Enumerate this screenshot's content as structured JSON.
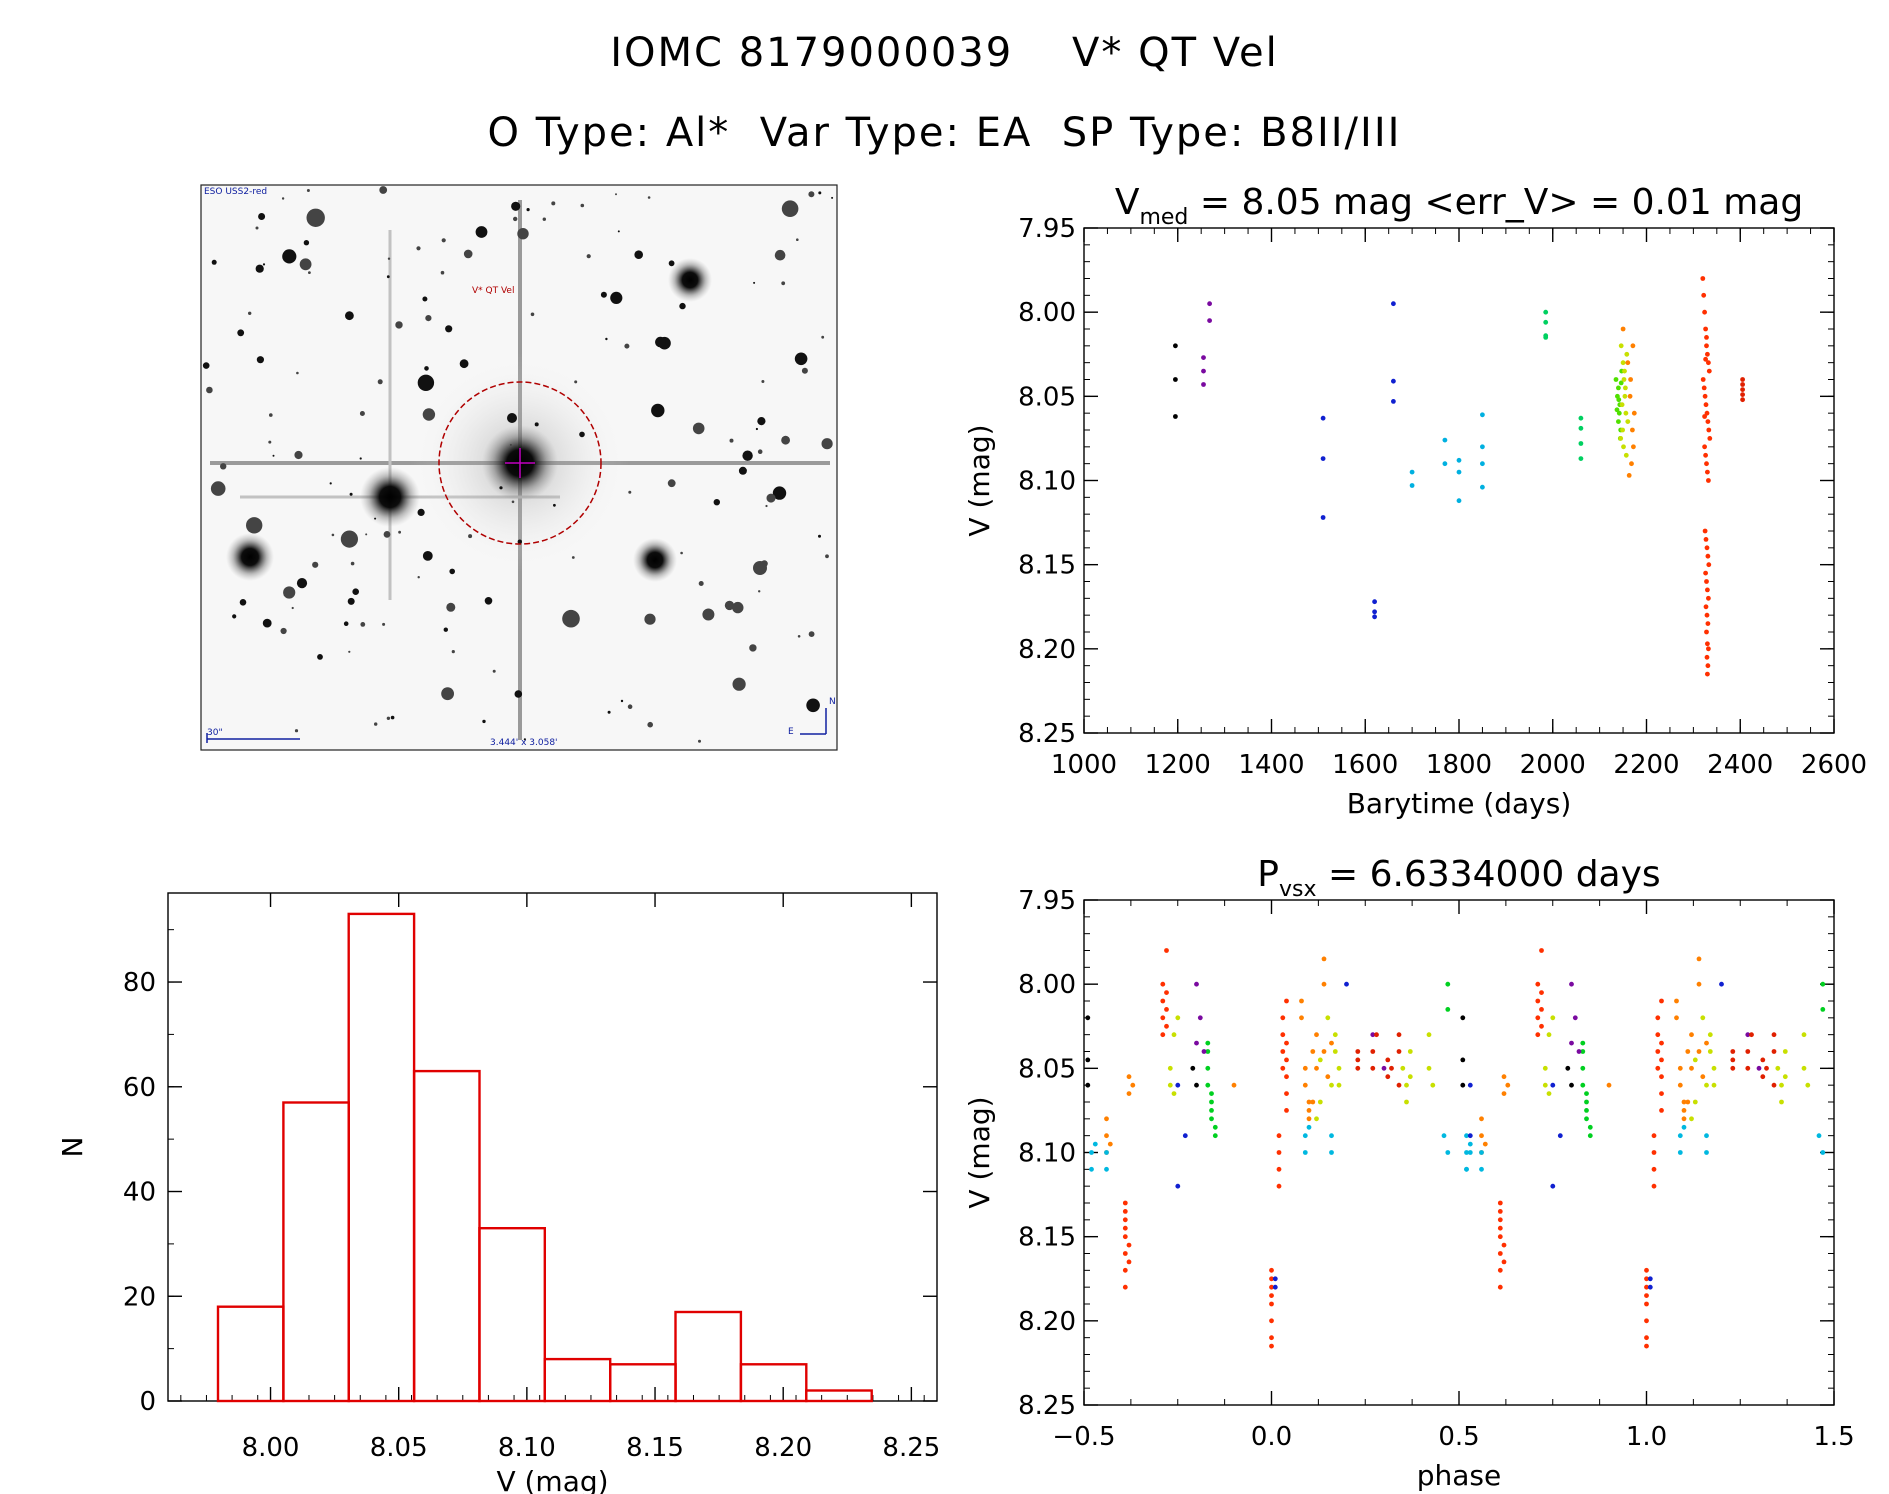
{
  "header": {
    "title_line1": "IOMC 8179000039    V* QT Vel",
    "title_line2": "O Type: Al*  Var Type: EA  SP Type: B8II/III"
  },
  "finder": {
    "survey_label": "ESO USS2-red",
    "target_label": "V* QT Vel",
    "scale_label": "30\"",
    "fov_label": "3.444' x 3.058'",
    "north_label": "N",
    "east_label": "E"
  },
  "chart_data": [
    {
      "id": "lightcurve",
      "type": "scatter",
      "title_main": "V",
      "title_sub": "med",
      "title_rest": " = 8.05 mag <err_V> = 0.01 mag",
      "xlabel": "Barytime (days)",
      "ylabel": "V (mag)",
      "xlim": [
        1000,
        2600
      ],
      "ylim": [
        8.25,
        7.95
      ],
      "y_inverted": true,
      "xticks": [
        1000,
        1200,
        1400,
        1600,
        1800,
        2000,
        2200,
        2400,
        2600
      ],
      "yticks": [
        7.95,
        8.0,
        8.05,
        8.1,
        8.15,
        8.2,
        8.25
      ],
      "groups": [
        {
          "color": "#000000",
          "x": [
            1195,
            1195,
            1195
          ],
          "y": [
            8.02,
            8.04,
            8.062
          ]
        },
        {
          "color": "#7a0aa0",
          "x": [
            1255,
            1255,
            1255,
            1268,
            1268
          ],
          "y": [
            8.027,
            8.035,
            8.043,
            7.995,
            8.005
          ]
        },
        {
          "color": "#1020d0",
          "x": [
            1510,
            1510,
            1510,
            1620,
            1620,
            1620,
            1660,
            1660,
            1660
          ],
          "y": [
            8.063,
            8.087,
            8.122,
            8.172,
            8.178,
            8.181,
            7.995,
            8.041,
            8.053
          ]
        },
        {
          "color": "#00b0e0",
          "x": [
            1700,
            1700,
            1770,
            1770,
            1800,
            1800,
            1800,
            1850,
            1850,
            1850,
            1850
          ],
          "y": [
            8.095,
            8.103,
            8.076,
            8.09,
            8.088,
            8.095,
            8.112,
            8.061,
            8.08,
            8.09,
            8.104
          ]
        },
        {
          "color": "#00d060",
          "x": [
            1985,
            1985,
            1985,
            1985,
            2060,
            2060,
            2060,
            2060
          ],
          "y": [
            8.0,
            8.006,
            8.014,
            8.015,
            8.063,
            8.069,
            8.078,
            8.087
          ]
        },
        {
          "color": "#50e000",
          "x": [
            2135,
            2138,
            2140,
            2142,
            2143,
            2145,
            2147,
            2140,
            2144,
            2146,
            2141,
            2137
          ],
          "y": [
            8.04,
            8.05,
            8.045,
            8.06,
            8.055,
            8.07,
            8.035,
            8.065,
            8.075,
            8.042,
            8.052,
            8.058
          ]
        },
        {
          "color": "#c8e000",
          "x": [
            2146,
            2150,
            2152,
            2154,
            2156,
            2149,
            2151,
            2153,
            2155,
            2148,
            2158,
            2160,
            2145,
            2157
          ],
          "y": [
            8.02,
            8.03,
            8.04,
            8.05,
            8.06,
            8.07,
            8.08,
            8.035,
            8.045,
            8.055,
            8.025,
            8.065,
            8.075,
            8.085
          ]
        },
        {
          "color": "#ff8000",
          "x": [
            2150,
            2160,
            2165,
            2170,
            2172,
            2168,
            2163,
            2171,
            2166,
            2174
          ],
          "y": [
            8.01,
            8.03,
            8.05,
            8.07,
            8.08,
            8.09,
            8.097,
            8.02,
            8.04,
            8.06
          ]
        },
        {
          "color": "#ff3000",
          "x": [
            2320,
            2322,
            2324,
            2326,
            2328,
            2330,
            2332,
            2334,
            2321,
            2323,
            2325,
            2327,
            2329,
            2331,
            2333,
            2335,
            2324,
            2326,
            2328,
            2330,
            2332,
            2325,
            2327,
            2329,
            2331,
            2333,
            2326,
            2328,
            2330,
            2332,
            2327,
            2329,
            2331,
            2328,
            2330,
            2332,
            2329,
            2331,
            2330,
            2328,
            2326,
            2324
          ],
          "y": [
            7.98,
            7.99,
            8.0,
            8.01,
            8.02,
            8.025,
            8.03,
            8.035,
            8.04,
            8.045,
            8.05,
            8.055,
            8.06,
            8.065,
            8.07,
            8.075,
            8.08,
            8.085,
            8.09,
            8.095,
            8.1,
            8.13,
            8.135,
            8.14,
            8.145,
            8.15,
            8.155,
            8.16,
            8.165,
            8.17,
            8.175,
            8.18,
            8.185,
            8.19,
            8.197,
            8.2,
            8.205,
            8.21,
            8.215,
            8.015,
            8.028,
            8.062
          ]
        },
        {
          "color": "#e02000",
          "x": [
            2405,
            2405,
            2405,
            2405,
            2405
          ],
          "y": [
            8.04,
            8.043,
            8.046,
            8.049,
            8.052
          ]
        }
      ]
    },
    {
      "id": "phase",
      "type": "scatter",
      "title_main": "P",
      "title_sub": "vsx",
      "title_rest": " = 6.6334000 days",
      "xlabel": "phase",
      "ylabel": "V (mag)",
      "xlim": [
        -0.5,
        1.5
      ],
      "ylim": [
        8.25,
        7.95
      ],
      "y_inverted": true,
      "xticks": [
        -0.5,
        0.0,
        0.5,
        1.0,
        1.5
      ],
      "ytickvals": [
        7.95,
        8.0,
        8.05,
        8.1,
        8.15,
        8.2,
        8.25
      ],
      "points_base": [
        {
          "color": "#ff3000",
          "x": [
            -0.29,
            -0.29,
            -0.29,
            -0.29,
            -0.28,
            -0.28,
            -0.28,
            -0.28,
            -0.39,
            -0.39,
            -0.39,
            -0.39,
            -0.39,
            -0.39,
            -0.39,
            -0.39,
            0.0,
            0.0,
            0.0,
            0.0,
            0.0,
            0.0,
            0.0,
            0.0,
            0.02,
            0.02,
            0.02,
            0.02,
            0.03,
            0.03,
            0.03,
            0.03,
            0.04,
            0.04,
            0.04,
            0.04,
            0.04,
            0.04,
            -0.38,
            -0.38
          ],
          "y": [
            8.0,
            8.01,
            8.02,
            8.03,
            7.98,
            8.005,
            8.015,
            8.025,
            8.13,
            8.14,
            8.15,
            8.16,
            8.17,
            8.18,
            8.135,
            8.145,
            8.17,
            8.18,
            8.19,
            8.2,
            8.21,
            8.215,
            8.175,
            8.185,
            8.1,
            8.11,
            8.12,
            8.09,
            8.02,
            8.03,
            8.04,
            8.05,
            8.01,
            8.035,
            8.045,
            8.055,
            8.065,
            8.075,
            8.155,
            8.165
          ]
        },
        {
          "color": "#ff8000",
          "x": [
            0.08,
            0.08,
            0.09,
            0.09,
            0.1,
            0.1,
            0.1,
            0.14,
            0.14,
            0.14,
            0.15,
            -0.44,
            -0.44,
            -0.44,
            -0.38,
            -0.38,
            -0.37,
            0.12,
            0.12,
            0.11,
            0.11,
            -0.43,
            -0.1,
            0.16
          ],
          "y": [
            8.01,
            8.02,
            8.05,
            8.06,
            8.07,
            8.075,
            8.08,
            7.985,
            8.0,
            8.04,
            8.055,
            8.09,
            8.1,
            8.08,
            8.055,
            8.065,
            8.06,
            8.03,
            8.05,
            8.04,
            8.07,
            8.095,
            8.06,
            8.035
          ]
        },
        {
          "color": "#c8e000",
          "x": [
            0.17,
            0.17,
            0.18,
            0.18,
            -0.27,
            -0.27,
            -0.26,
            -0.26,
            0.12,
            0.13,
            0.13,
            0.15,
            0.16,
            0.35,
            0.36,
            0.36,
            0.37,
            0.37,
            0.42,
            0.42,
            0.43,
            -0.25
          ],
          "y": [
            8.03,
            8.04,
            8.05,
            8.06,
            8.05,
            8.06,
            8.03,
            8.065,
            8.08,
            8.07,
            8.045,
            8.02,
            8.06,
            8.05,
            8.06,
            8.07,
            8.04,
            8.055,
            8.03,
            8.05,
            8.06,
            8.02
          ]
        },
        {
          "color": "#00d020",
          "x": [
            -0.17,
            -0.17,
            -0.17,
            -0.16,
            -0.16,
            -0.16,
            -0.16,
            -0.15,
            -0.15,
            -0.17,
            0.47,
            0.47
          ],
          "y": [
            8.04,
            8.05,
            8.06,
            8.065,
            8.07,
            8.075,
            8.08,
            8.09,
            8.085,
            8.035,
            8.0,
            8.015
          ]
        },
        {
          "color": "#00b8e0",
          "x": [
            -0.48,
            -0.48,
            -0.47,
            0.09,
            0.09,
            0.1,
            0.16,
            0.16,
            -0.44,
            -0.44,
            0.46,
            0.47,
            0.52,
            0.52,
            0.53
          ],
          "y": [
            8.1,
            8.11,
            8.095,
            8.09,
            8.1,
            8.085,
            8.09,
            8.1,
            8.1,
            8.11,
            8.09,
            8.1,
            8.11,
            8.09,
            8.1
          ],
          "y2": []
        },
        {
          "color": "#1020d0",
          "x": [
            -0.25,
            -0.25,
            0.01,
            0.01,
            0.2,
            -0.23,
            0.53,
            0.53
          ],
          "y": [
            8.06,
            8.12,
            8.175,
            8.18,
            8.0,
            8.09,
            8.06,
            8.09
          ]
        },
        {
          "color": "#7a0aa0",
          "x": [
            -0.2,
            -0.19,
            -0.2,
            -0.18,
            0.27,
            0.3
          ],
          "y": [
            8.0,
            8.02,
            8.035,
            8.04,
            8.03,
            8.05
          ]
        },
        {
          "color": "#000000",
          "x": [
            -0.49,
            -0.49,
            -0.49,
            -0.21,
            -0.2
          ],
          "y": [
            8.02,
            8.045,
            8.06,
            8.05,
            8.06
          ]
        },
        {
          "color": "#e02000",
          "x": [
            0.23,
            0.23,
            0.23,
            0.27,
            0.27,
            0.28,
            0.34,
            0.34,
            0.34,
            0.31,
            0.31,
            0.32
          ],
          "y": [
            8.04,
            8.045,
            8.05,
            8.04,
            8.05,
            8.03,
            8.03,
            8.04,
            8.06,
            8.045,
            8.055,
            8.05
          ]
        }
      ]
    },
    {
      "id": "histogram",
      "type": "bar",
      "xlabel": "V (mag)",
      "ylabel": "N",
      "xlim": [
        7.96,
        8.26
      ],
      "ylim": [
        0,
        97
      ],
      "xticks": [
        8.0,
        8.05,
        8.1,
        8.15,
        8.2,
        8.25
      ],
      "yticks": [
        0,
        20,
        40,
        60,
        80
      ],
      "bin_edges": [
        7.9795,
        8.005,
        8.0305,
        8.056,
        8.0815,
        8.107,
        8.1325,
        8.158,
        8.1835,
        8.209,
        8.2345
      ],
      "values": [
        18,
        57,
        93,
        63,
        33,
        8,
        7,
        17,
        7,
        2
      ],
      "bar_color": "#e00000"
    }
  ]
}
